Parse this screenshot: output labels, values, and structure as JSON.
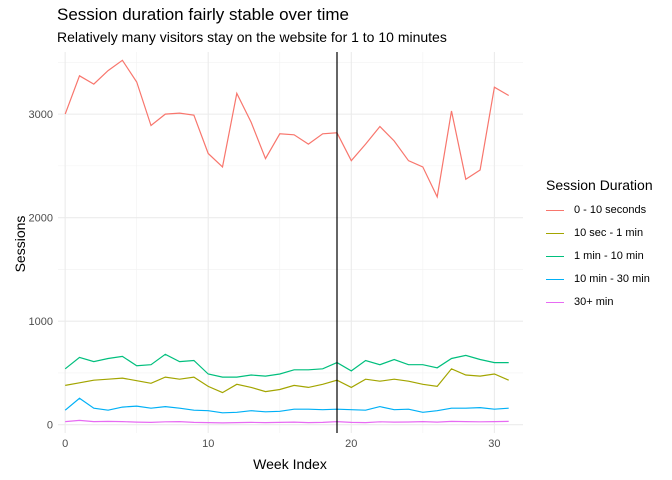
{
  "chart_data": {
    "type": "line",
    "title": "Session duration fairly stable over time",
    "subtitle": "Relatively many visitors stay on the website for 1 to 10 minutes",
    "xlabel": "Week Index",
    "ylabel": "Sessions",
    "xlim": [
      -0.5,
      32
    ],
    "ylim": [
      -80,
      3600
    ],
    "x_ticks": [
      0,
      10,
      20,
      30
    ],
    "y_ticks": [
      0,
      1000,
      2000,
      3000
    ],
    "grid": true,
    "vline_x": 19,
    "legend": {
      "title": "Session Duration",
      "position": "right"
    },
    "x": [
      0,
      1,
      2,
      3,
      4,
      5,
      6,
      7,
      8,
      9,
      10,
      11,
      12,
      13,
      14,
      15,
      16,
      17,
      18,
      19,
      20,
      21,
      22,
      23,
      24,
      25,
      26,
      27,
      28,
      29,
      30,
      31
    ],
    "series": [
      {
        "name": "0 - 10 seconds",
        "color": "#F8766D",
        "values": [
          3000,
          3370,
          3290,
          3420,
          3520,
          3310,
          2890,
          3000,
          3010,
          2990,
          2620,
          2490,
          3200,
          2920,
          2570,
          2810,
          2800,
          2710,
          2810,
          2820,
          2550,
          2710,
          2880,
          2740,
          2550,
          2490,
          2200,
          3030,
          2370,
          2460,
          3260,
          3180
        ]
      },
      {
        "name": "10 sec - 1 min",
        "color": "#A3A500",
        "values": [
          380,
          405,
          430,
          440,
          450,
          425,
          400,
          460,
          440,
          460,
          370,
          310,
          390,
          360,
          320,
          340,
          380,
          360,
          390,
          430,
          360,
          440,
          420,
          440,
          420,
          390,
          370,
          540,
          480,
          470,
          490,
          430
        ]
      },
      {
        "name": "1 min - 10 min",
        "color": "#00BF7D",
        "values": [
          540,
          650,
          610,
          640,
          660,
          570,
          580,
          680,
          610,
          620,
          490,
          460,
          460,
          480,
          470,
          490,
          530,
          530,
          540,
          600,
          520,
          620,
          580,
          630,
          580,
          580,
          550,
          640,
          670,
          630,
          600,
          600
        ]
      },
      {
        "name": "10 min - 30 min",
        "color": "#00B0F6",
        "values": [
          140,
          255,
          160,
          140,
          170,
          180,
          160,
          175,
          160,
          140,
          135,
          115,
          120,
          135,
          125,
          130,
          150,
          150,
          145,
          150,
          145,
          140,
          175,
          145,
          150,
          120,
          135,
          160,
          160,
          165,
          150,
          160
        ]
      },
      {
        "name": "30+ min",
        "color": "#E76BF3",
        "values": [
          30,
          42,
          30,
          32,
          30,
          25,
          22,
          28,
          30,
          22,
          20,
          18,
          20,
          22,
          20,
          22,
          25,
          20,
          22,
          30,
          22,
          20,
          28,
          25,
          26,
          30,
          25,
          32,
          30,
          28,
          30,
          32
        ]
      }
    ]
  }
}
